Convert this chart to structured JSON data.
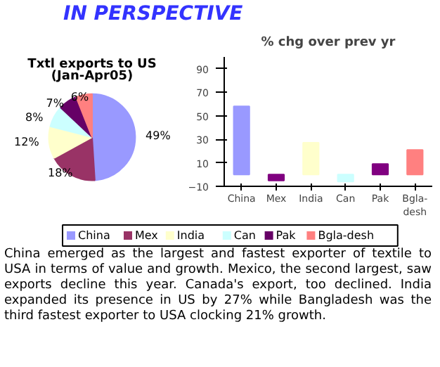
{
  "chart_data": [
    {
      "type": "pie",
      "title": "Txtl exports to US\n(Jan-Apr05)",
      "categories": [
        "China",
        "Mex",
        "India",
        "Can",
        "Pak",
        "Bgla-desh"
      ],
      "values": [
        49,
        18,
        12,
        8,
        7,
        6
      ],
      "colors": [
        "#9999ff",
        "#993366",
        "#ffffcc",
        "#ccffff",
        "#660066",
        "#ff8080"
      ],
      "value_labels": [
        "49%",
        "18%",
        "12%",
        "8%",
        "7%",
        "6%"
      ],
      "legend": "bottom",
      "annotations": [
        "IN PERSPECTIVE",
        "China emerged as the largest and fastest exporter of textile to USA in terms of value and growth. Mexico, the second largest, saw exports decline this year. Canada's export, too declined. India expanded its presence in US by 27% while Bangladesh was the third fastest exporter to USA clocking 21% growth."
      ]
    },
    {
      "type": "bar",
      "title": "% chg over prev yr",
      "categories": [
        "China",
        "Mex",
        "India",
        "Can",
        "Pak",
        "Bgla-desh"
      ],
      "values": [
        58,
        -5,
        27,
        -6,
        9,
        21
      ],
      "colors": [
        "#9999ff",
        "#800080",
        "#ffffcc",
        "#ccffff",
        "#800080",
        "#ff8080"
      ],
      "ylim": [
        -10,
        100
      ],
      "yticks": [
        -10,
        10,
        30,
        50,
        70,
        90
      ],
      "grid": false
    }
  ]
}
